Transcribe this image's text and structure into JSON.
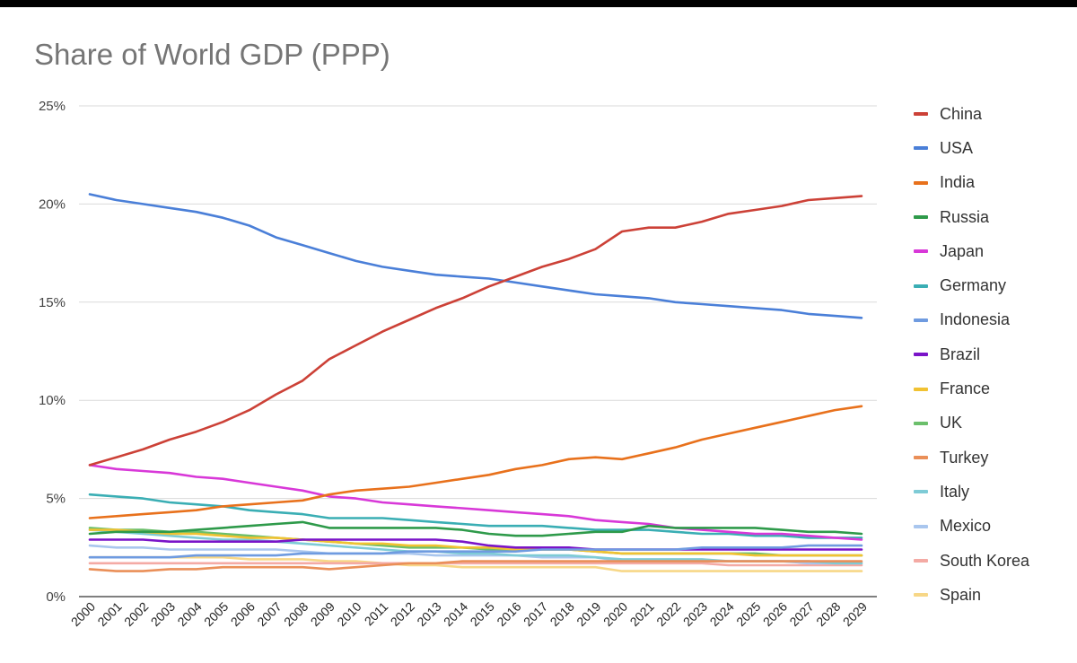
{
  "chart_data": {
    "type": "line",
    "title": "Share of World GDP (PPP)",
    "xlabel": "",
    "ylabel": "",
    "ylim": [
      0,
      25
    ],
    "yticks": [
      0,
      5,
      10,
      15,
      20,
      25
    ],
    "ytick_labels": [
      "0%",
      "5%",
      "10%",
      "15%",
      "20%",
      "25%"
    ],
    "grid": true,
    "legend_position": "right",
    "categories": [
      "2000",
      "2001",
      "2002",
      "2003",
      "2004",
      "2005",
      "2006",
      "2007",
      "2008",
      "2009",
      "2010",
      "2011",
      "2012",
      "2013",
      "2014",
      "2015",
      "2016",
      "2017",
      "2018",
      "2019",
      "2020",
      "2021",
      "2022",
      "2023",
      "2024",
      "2025",
      "2026",
      "2027",
      "2028",
      "2029"
    ],
    "series": [
      {
        "name": "China",
        "color": "#cc4137",
        "values": [
          6.7,
          7.1,
          7.5,
          8.0,
          8.4,
          8.9,
          9.5,
          10.3,
          11.0,
          12.1,
          12.8,
          13.5,
          14.1,
          14.7,
          15.2,
          15.8,
          16.3,
          16.8,
          17.2,
          17.7,
          18.6,
          18.8,
          18.8,
          19.1,
          19.5,
          19.7,
          19.9,
          20.2,
          20.3,
          20.4
        ]
      },
      {
        "name": "USA",
        "color": "#4a7fd8",
        "values": [
          20.5,
          20.2,
          20.0,
          19.8,
          19.6,
          19.3,
          18.9,
          18.3,
          17.9,
          17.5,
          17.1,
          16.8,
          16.6,
          16.4,
          16.3,
          16.2,
          16.0,
          15.8,
          15.6,
          15.4,
          15.3,
          15.2,
          15.0,
          14.9,
          14.8,
          14.7,
          14.6,
          14.4,
          14.3,
          14.2
        ]
      },
      {
        "name": "India",
        "color": "#e8711c",
        "values": [
          4.0,
          4.1,
          4.2,
          4.3,
          4.4,
          4.6,
          4.7,
          4.8,
          4.9,
          5.2,
          5.4,
          5.5,
          5.6,
          5.8,
          6.0,
          6.2,
          6.5,
          6.7,
          7.0,
          7.1,
          7.0,
          7.3,
          7.6,
          8.0,
          8.3,
          8.6,
          8.9,
          9.2,
          9.5,
          9.7
        ]
      },
      {
        "name": "Russia",
        "color": "#2e9a4a",
        "values": [
          3.2,
          3.3,
          3.3,
          3.3,
          3.4,
          3.5,
          3.6,
          3.7,
          3.8,
          3.5,
          3.5,
          3.5,
          3.5,
          3.5,
          3.4,
          3.2,
          3.1,
          3.1,
          3.2,
          3.3,
          3.3,
          3.6,
          3.5,
          3.5,
          3.5,
          3.5,
          3.4,
          3.3,
          3.3,
          3.2
        ]
      },
      {
        "name": "Japan",
        "color": "#d838d8",
        "values": [
          6.7,
          6.5,
          6.4,
          6.3,
          6.1,
          6.0,
          5.8,
          5.6,
          5.4,
          5.1,
          5.0,
          4.8,
          4.7,
          4.6,
          4.5,
          4.4,
          4.3,
          4.2,
          4.1,
          3.9,
          3.8,
          3.7,
          3.5,
          3.4,
          3.3,
          3.2,
          3.2,
          3.1,
          3.0,
          2.9
        ]
      },
      {
        "name": "Germany",
        "color": "#3aaeb4",
        "values": [
          5.2,
          5.1,
          5.0,
          4.8,
          4.7,
          4.6,
          4.4,
          4.3,
          4.2,
          4.0,
          4.0,
          4.0,
          3.9,
          3.8,
          3.7,
          3.6,
          3.6,
          3.6,
          3.5,
          3.4,
          3.4,
          3.4,
          3.3,
          3.2,
          3.2,
          3.1,
          3.1,
          3.0,
          3.0,
          3.0
        ]
      },
      {
        "name": "Indonesia",
        "color": "#6f9be0",
        "values": [
          2.0,
          2.0,
          2.0,
          2.0,
          2.1,
          2.1,
          2.1,
          2.1,
          2.2,
          2.2,
          2.2,
          2.2,
          2.3,
          2.3,
          2.3,
          2.3,
          2.3,
          2.4,
          2.4,
          2.4,
          2.4,
          2.4,
          2.4,
          2.5,
          2.5,
          2.5,
          2.5,
          2.6,
          2.6,
          2.6
        ]
      },
      {
        "name": "Brazil",
        "color": "#7a14c8",
        "values": [
          2.9,
          2.9,
          2.9,
          2.8,
          2.8,
          2.8,
          2.8,
          2.8,
          2.9,
          2.9,
          2.9,
          2.9,
          2.9,
          2.9,
          2.8,
          2.6,
          2.5,
          2.5,
          2.5,
          2.4,
          2.4,
          2.4,
          2.4,
          2.4,
          2.4,
          2.4,
          2.4,
          2.4,
          2.4,
          2.4
        ]
      },
      {
        "name": "France",
        "color": "#f1c232",
        "values": [
          3.4,
          3.4,
          3.3,
          3.2,
          3.2,
          3.1,
          3.0,
          3.0,
          2.9,
          2.8,
          2.7,
          2.7,
          2.6,
          2.6,
          2.5,
          2.5,
          2.4,
          2.4,
          2.4,
          2.3,
          2.2,
          2.2,
          2.2,
          2.2,
          2.2,
          2.1,
          2.1,
          2.1,
          2.1,
          2.1
        ]
      },
      {
        "name": "UK",
        "color": "#6bbf6b",
        "values": [
          3.5,
          3.4,
          3.4,
          3.3,
          3.3,
          3.2,
          3.1,
          3.0,
          2.9,
          2.8,
          2.7,
          2.6,
          2.5,
          2.5,
          2.5,
          2.4,
          2.4,
          2.4,
          2.4,
          2.3,
          2.2,
          2.2,
          2.2,
          2.2,
          2.2,
          2.2,
          2.1,
          2.1,
          2.1,
          2.1
        ]
      },
      {
        "name": "Turkey",
        "color": "#ea8f58",
        "values": [
          1.4,
          1.3,
          1.3,
          1.4,
          1.4,
          1.5,
          1.5,
          1.5,
          1.5,
          1.4,
          1.5,
          1.6,
          1.7,
          1.7,
          1.8,
          1.8,
          1.8,
          1.8,
          1.8,
          1.8,
          1.8,
          1.8,
          1.8,
          1.8,
          1.8,
          1.8,
          1.8,
          1.8,
          1.8,
          1.8
        ]
      },
      {
        "name": "Italy",
        "color": "#7ecbd6",
        "values": [
          3.4,
          3.3,
          3.2,
          3.1,
          3.0,
          2.9,
          2.9,
          2.8,
          2.7,
          2.6,
          2.5,
          2.4,
          2.3,
          2.3,
          2.2,
          2.2,
          2.1,
          2.1,
          2.1,
          2.0,
          1.9,
          1.9,
          1.9,
          1.9,
          1.8,
          1.8,
          1.8,
          1.8,
          1.7,
          1.7
        ]
      },
      {
        "name": "Mexico",
        "color": "#a9c6ee",
        "values": [
          2.6,
          2.5,
          2.5,
          2.4,
          2.4,
          2.4,
          2.4,
          2.4,
          2.3,
          2.2,
          2.2,
          2.2,
          2.2,
          2.1,
          2.1,
          2.1,
          2.1,
          2.0,
          2.0,
          2.0,
          1.8,
          1.8,
          1.8,
          1.8,
          1.8,
          1.8,
          1.8,
          1.7,
          1.7,
          1.7
        ]
      },
      {
        "name": "South Korea",
        "color": "#f4aaa4",
        "values": [
          1.7,
          1.7,
          1.7,
          1.7,
          1.7,
          1.7,
          1.7,
          1.7,
          1.7,
          1.7,
          1.7,
          1.7,
          1.7,
          1.7,
          1.7,
          1.7,
          1.7,
          1.7,
          1.7,
          1.7,
          1.7,
          1.7,
          1.7,
          1.7,
          1.6,
          1.6,
          1.6,
          1.6,
          1.6,
          1.6
        ]
      },
      {
        "name": "Spain",
        "color": "#f7d787",
        "values": [
          2.0,
          2.0,
          2.0,
          2.0,
          2.0,
          2.0,
          1.9,
          1.9,
          1.9,
          1.8,
          1.8,
          1.7,
          1.6,
          1.6,
          1.5,
          1.5,
          1.5,
          1.5,
          1.5,
          1.5,
          1.3,
          1.3,
          1.3,
          1.3,
          1.3,
          1.3,
          1.3,
          1.3,
          1.3,
          1.3
        ]
      }
    ]
  }
}
